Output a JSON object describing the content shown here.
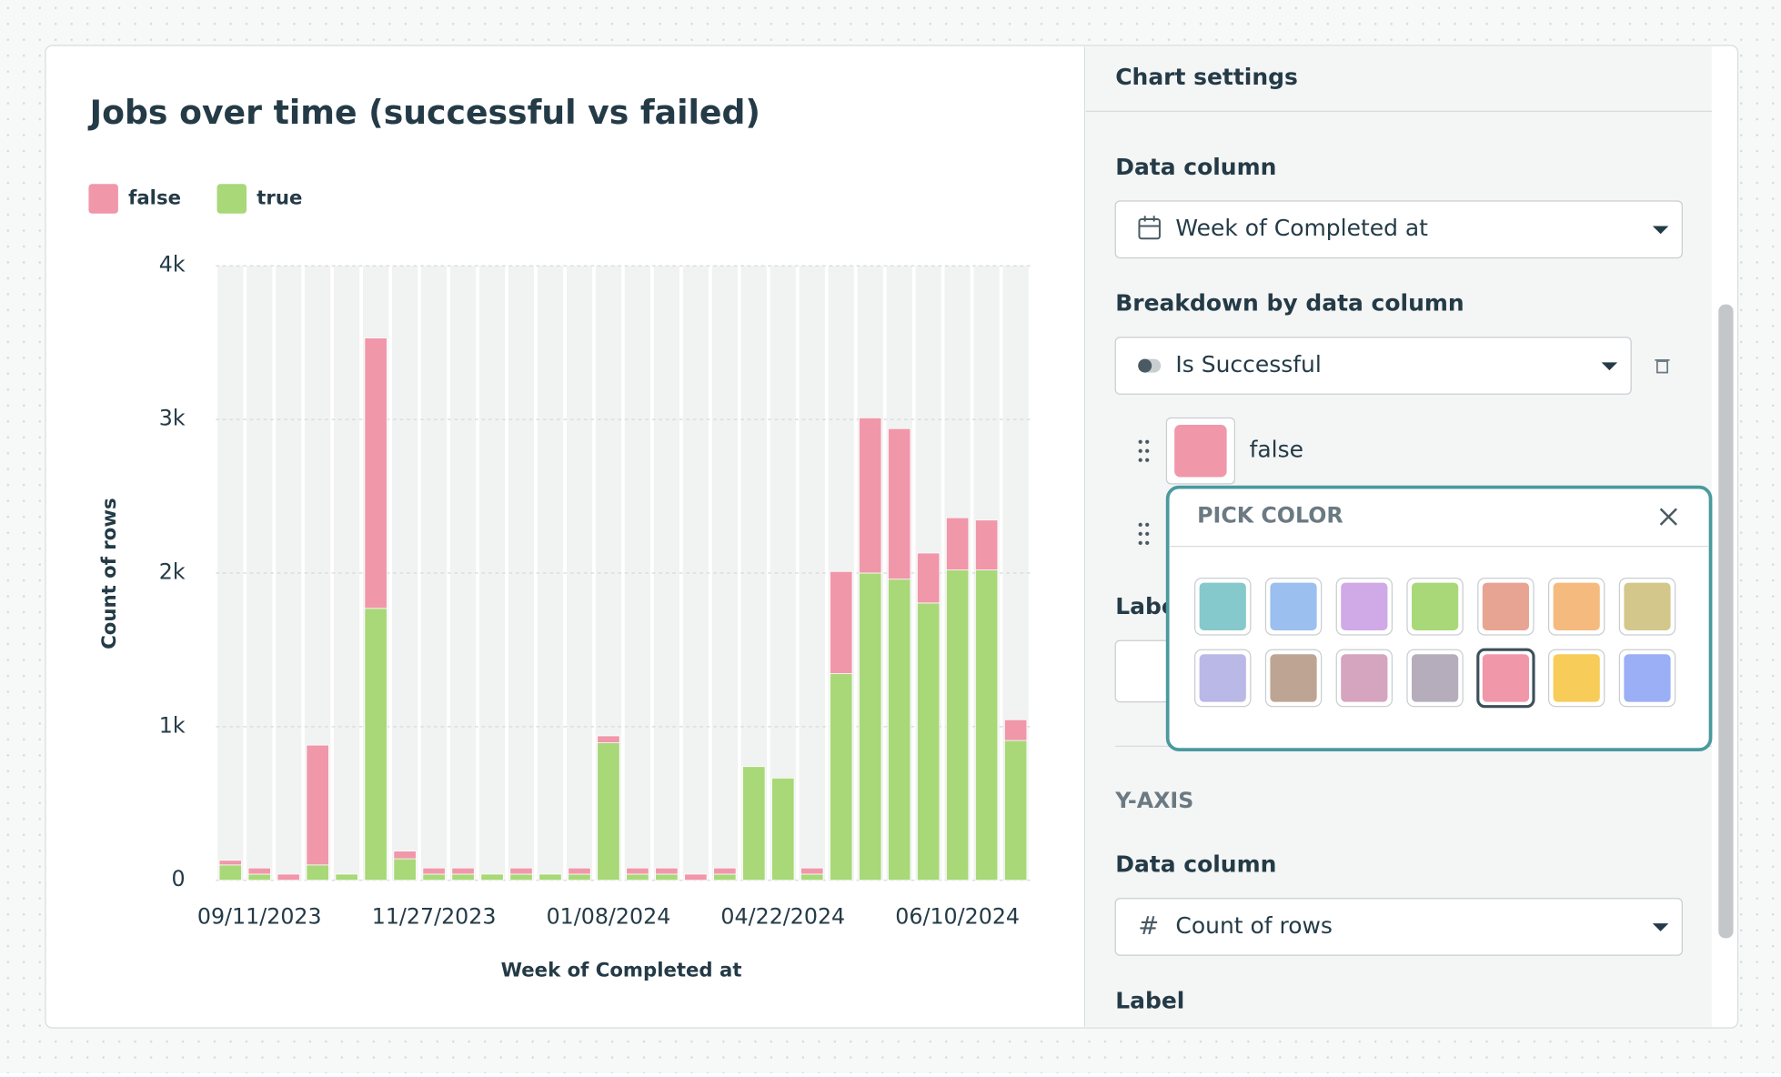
{
  "chart_data": {
    "type": "bar",
    "stacked": true,
    "title": "Jobs over time (successful vs failed)",
    "x_label": "Week of Completed at",
    "y_label": "Count of rows",
    "categories": [
      null,
      "09/11/2023",
      null,
      null,
      null,
      null,
      null,
      "11/27/2023",
      null,
      null,
      null,
      null,
      null,
      "01/08/2024",
      null,
      null,
      null,
      null,
      null,
      "04/22/2024",
      null,
      null,
      null,
      null,
      null,
      "06/10/2024",
      null,
      null
    ],
    "series": [
      {
        "name": "false",
        "color": "#f097aa",
        "values": [
          30,
          40,
          40,
          780,
          0,
          1760,
          50,
          40,
          40,
          0,
          40,
          0,
          40,
          45,
          40,
          40,
          40,
          40,
          0,
          0,
          40,
          665,
          1010,
          980,
          325,
          340,
          325,
          135
        ]
      },
      {
        "name": "true",
        "color": "#a8d878",
        "values": [
          100,
          40,
          0,
          100,
          40,
          1770,
          140,
          40,
          40,
          40,
          40,
          40,
          40,
          895,
          40,
          40,
          0,
          40,
          740,
          665,
          40,
          1345,
          2000,
          1960,
          1805,
          2020,
          2020,
          910
        ]
      }
    ],
    "ylim": [
      0,
      4000
    ],
    "yticks": [
      0,
      {
        "value": 1000,
        "label": "1k"
      },
      {
        "value": 2000,
        "label": "2k"
      },
      {
        "value": 3000,
        "label": "3k"
      },
      {
        "value": 4000,
        "label": "4k"
      }
    ],
    "grid": true
  },
  "settings": {
    "title": "Chart settings",
    "data_column_label": "Data column",
    "data_column": "Week of Completed at",
    "breakdown_label": "Breakdown by data column",
    "breakdown": "Is Successful",
    "item": "false",
    "popover_title": "PICK COLOR",
    "label_label": "Label",
    "y_axis_heading": "Y-AXIS",
    "y_data_column_label": "Data column",
    "y_data_column": "Count of rows",
    "y_label_label": "Label",
    "swatches": [
      "#85c9cc",
      "#9bbfee",
      "#cfaae6",
      "#a8d878",
      "#e8a493",
      "#f5bb7e",
      "#d4c78c",
      "#b9b8e6",
      "#bea493",
      "#d5a4be",
      "#b5adbc",
      "#f097aa",
      "#f7cc58",
      "#9aaff5"
    ],
    "selected_swatch": 11
  }
}
